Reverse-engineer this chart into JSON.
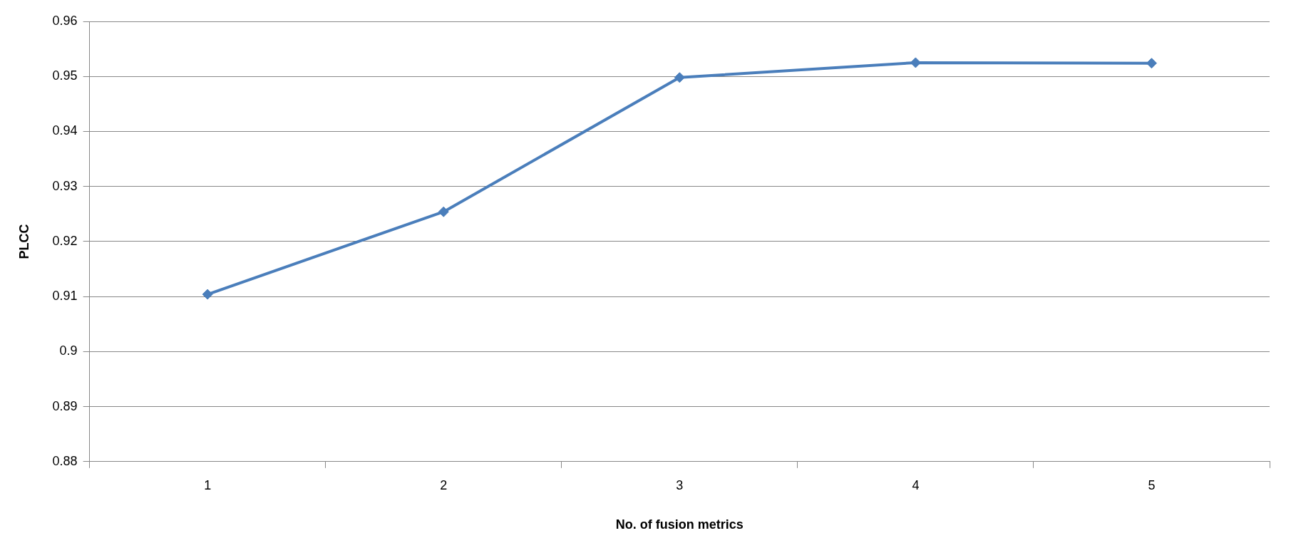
{
  "chart_data": {
    "type": "line",
    "xlabel": "No. of fusion metrics",
    "ylabel": "PLCC",
    "categories": [
      "1",
      "2",
      "3",
      "4",
      "5"
    ],
    "series": [
      {
        "color": "#4a7ebb",
        "values": [
          0.9104,
          0.9254,
          0.9498,
          0.9525,
          0.9524
        ]
      }
    ],
    "ylim": [
      0.88,
      0.96
    ],
    "yticks": [
      0.88,
      0.89,
      0.9,
      0.91,
      0.92,
      0.93,
      0.94,
      0.95,
      0.96
    ],
    "grid": "y",
    "legend": false,
    "marker": "diamond",
    "line_style": "solid"
  }
}
